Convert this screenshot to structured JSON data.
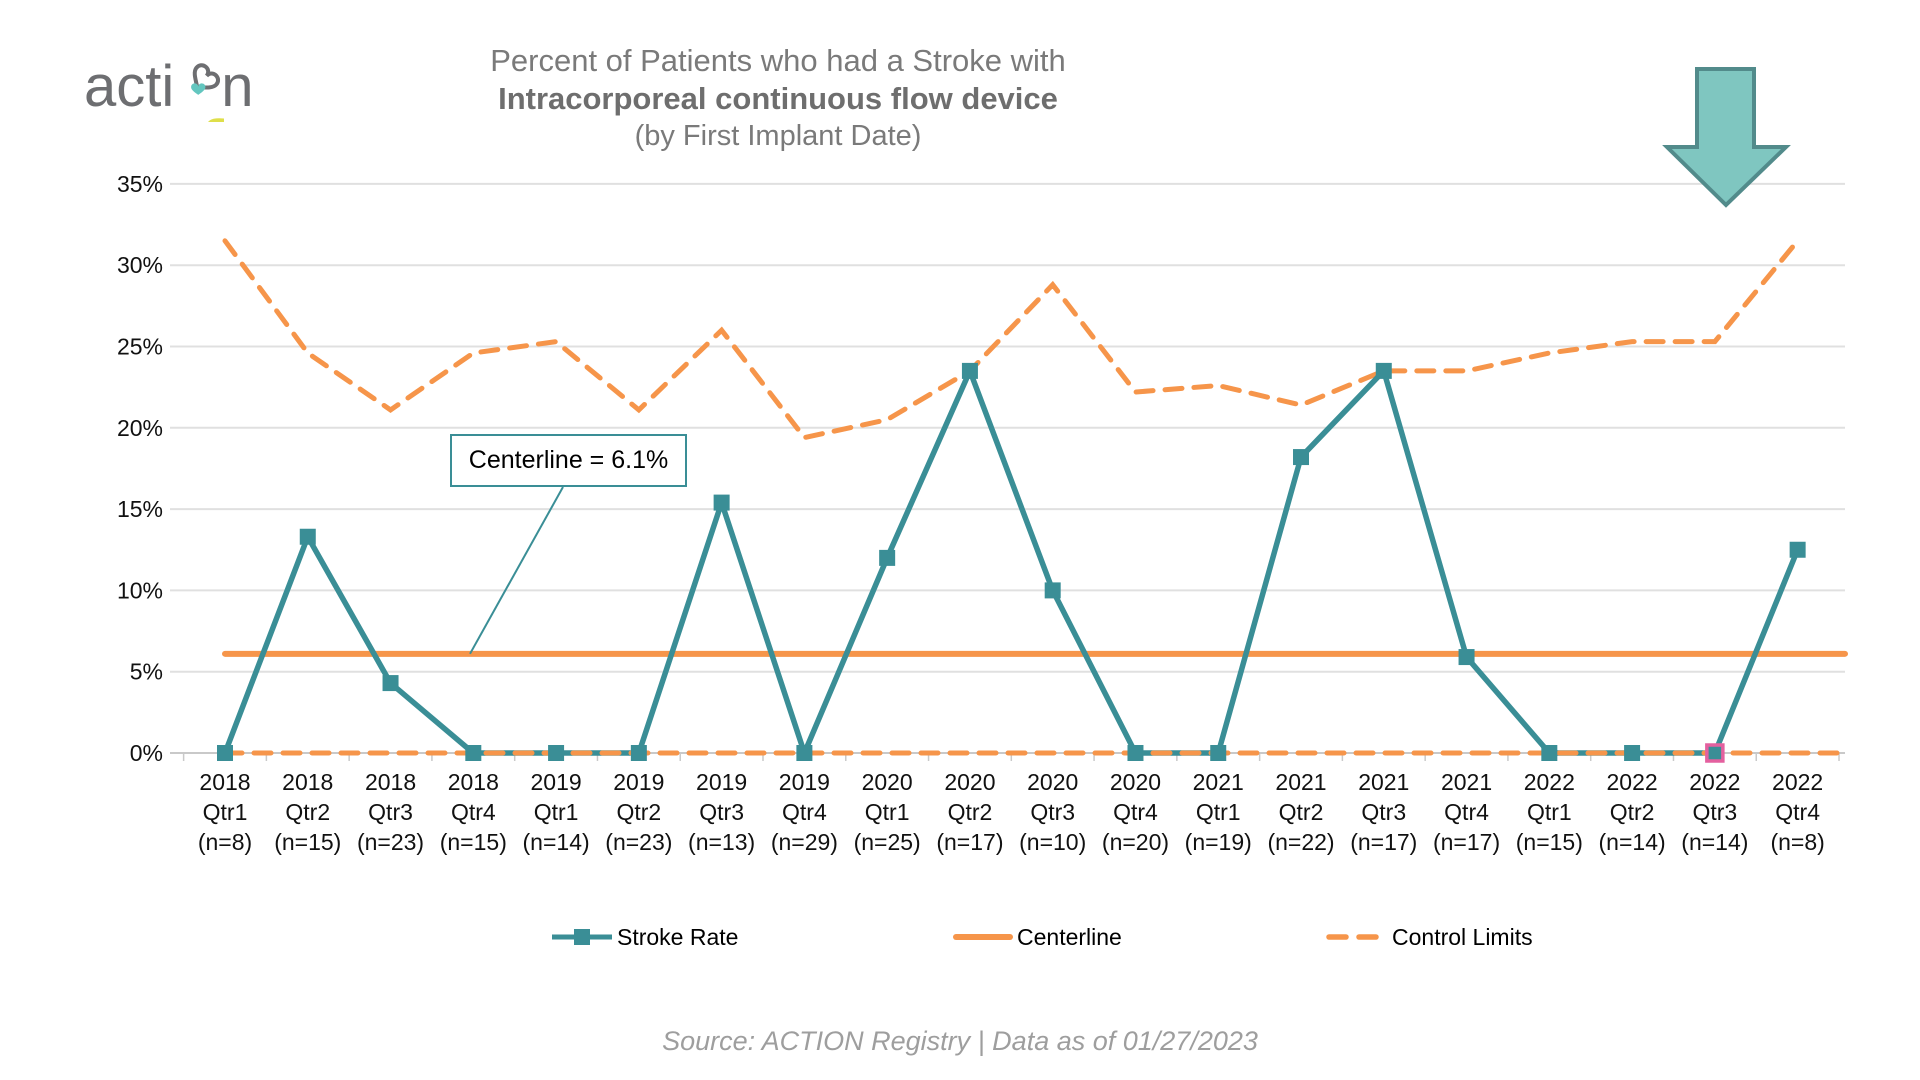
{
  "colors": {
    "teal": "#3a8e96",
    "orange": "#f6954a",
    "pink": "#e4609f",
    "grid": "#e0e0e0",
    "axis": "#c9c9c9",
    "title_gray": "#7a7a7a",
    "logo_gray": "#6d6e71",
    "logo_yellow": "#dfdf4a",
    "logo_teal": "#63c6bf",
    "arrow_fill": "#7fc6c0",
    "arrow_stroke": "#528b8b",
    "source_gray": "#9e9e9e"
  },
  "logo": {
    "text_before": "acti",
    "text_after": "n"
  },
  "header": {
    "title_line1": "Percent of Patients who had a Stroke with",
    "title_line2": "Intracorporeal continuous flow device",
    "title_line3": "(by First Implant Date)"
  },
  "callout": {
    "label": "Centerline = 6.1%"
  },
  "legend": {
    "stroke_rate": "Stroke Rate",
    "centerline": "Centerline",
    "control_limits": "Control Limits"
  },
  "source": {
    "text": "Source: ACTION Registry | Data as of 01/27/2023"
  },
  "chart_data": {
    "type": "line",
    "title": "Percent of Patients who had a Stroke with Intracorporeal continuous flow device (by First Implant Date)",
    "x_categories": [
      {
        "year": "2018",
        "qtr": "Qtr1",
        "n": "(n=8)"
      },
      {
        "year": "2018",
        "qtr": "Qtr2",
        "n": "(n=15)"
      },
      {
        "year": "2018",
        "qtr": "Qtr3",
        "n": "(n=23)"
      },
      {
        "year": "2018",
        "qtr": "Qtr4",
        "n": "(n=15)"
      },
      {
        "year": "2019",
        "qtr": "Qtr1",
        "n": "(n=14)"
      },
      {
        "year": "2019",
        "qtr": "Qtr2",
        "n": "(n=23)"
      },
      {
        "year": "2019",
        "qtr": "Qtr3",
        "n": "(n=13)"
      },
      {
        "year": "2019",
        "qtr": "Qtr4",
        "n": "(n=29)"
      },
      {
        "year": "2020",
        "qtr": "Qtr1",
        "n": "(n=25)"
      },
      {
        "year": "2020",
        "qtr": "Qtr2",
        "n": "(n=17)"
      },
      {
        "year": "2020",
        "qtr": "Qtr3",
        "n": "(n=10)"
      },
      {
        "year": "2020",
        "qtr": "Qtr4",
        "n": "(n=20)"
      },
      {
        "year": "2021",
        "qtr": "Qtr1",
        "n": "(n=19)"
      },
      {
        "year": "2021",
        "qtr": "Qtr2",
        "n": "(n=22)"
      },
      {
        "year": "2021",
        "qtr": "Qtr3",
        "n": "(n=17)"
      },
      {
        "year": "2021",
        "qtr": "Qtr4",
        "n": "(n=17)"
      },
      {
        "year": "2022",
        "qtr": "Qtr1",
        "n": "(n=15)"
      },
      {
        "year": "2022",
        "qtr": "Qtr2",
        "n": "(n=14)"
      },
      {
        "year": "2022",
        "qtr": "Qtr3",
        "n": "(n=14)"
      },
      {
        "year": "2022",
        "qtr": "Qtr4",
        "n": "(n=8)"
      }
    ],
    "series": [
      {
        "name": "Stroke Rate",
        "marker": "square",
        "values": [
          0,
          13.3,
          4.3,
          0,
          0,
          0,
          15.4,
          0,
          12.0,
          23.5,
          10.0,
          0,
          0,
          18.2,
          23.5,
          5.9,
          0,
          0,
          0,
          12.5
        ]
      },
      {
        "name": "Centerline",
        "value": 6.1
      },
      {
        "name": "Control Limits",
        "upper": [
          31.5,
          24.6,
          21.1,
          24.6,
          25.3,
          21.1,
          26.0,
          19.4,
          20.5,
          23.5,
          28.8,
          22.2,
          22.6,
          21.4,
          23.5,
          23.5,
          24.6,
          25.3,
          25.3,
          31.5
        ],
        "lower": [
          0,
          0,
          0,
          0,
          0,
          0,
          0,
          0,
          0,
          0,
          0,
          0,
          0,
          0,
          0,
          0,
          0,
          0,
          0,
          0
        ]
      }
    ],
    "highlighted_point_index": 18,
    "ylim": [
      0,
      35
    ],
    "y_ticks": [
      {
        "label": "0%",
        "value": 0
      },
      {
        "label": "5%",
        "value": 5
      },
      {
        "label": "10%",
        "value": 10
      },
      {
        "label": "15%",
        "value": 15
      },
      {
        "label": "20%",
        "value": 20
      },
      {
        "label": "25%",
        "value": 25
      },
      {
        "label": "30%",
        "value": 30
      },
      {
        "label": "35%",
        "value": 35
      }
    ],
    "grid": true,
    "legend_position": "bottom"
  }
}
